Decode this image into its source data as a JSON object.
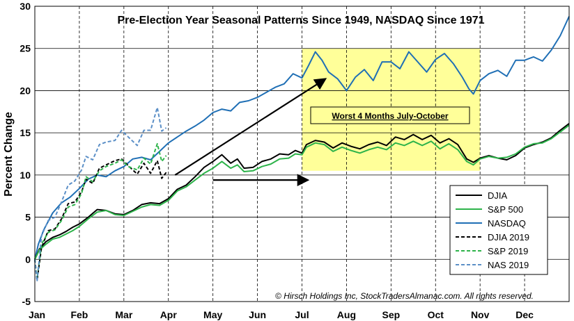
{
  "chart_data": {
    "type": "line",
    "title": "Pre-Election Year Seasonal Patterns Since 1949, NASDAQ Since 1971",
    "ylabel": "Percent Change",
    "xlabel": "",
    "ylim": [
      -5,
      30
    ],
    "yticks": [
      -5,
      0,
      5,
      10,
      15,
      20,
      25,
      30
    ],
    "months": [
      "Jan",
      "Feb",
      "Mar",
      "Apr",
      "May",
      "Jun",
      "Jul",
      "Aug",
      "Sep",
      "Oct",
      "Nov",
      "Dec"
    ],
    "grid": "vertical dashed month lines",
    "legend_position": "lower-right",
    "colors": {
      "djia": "#000000",
      "sp500": "#2db34a",
      "nasdaq": "#1f6fb5",
      "nas2019": "#5b8fc7",
      "highlight": "#ffff99"
    },
    "highlight": {
      "label": "Worst 4 Months July-October",
      "x_range": [
        6.0,
        10.0
      ],
      "y_range": [
        10.5,
        25
      ]
    },
    "arrows": [
      {
        "from": [
          3.15,
          10.0
        ],
        "to": [
          6.5,
          21.3
        ]
      },
      {
        "from": [
          4.0,
          9.4
        ],
        "to": [
          6.1,
          9.4
        ]
      }
    ],
    "copyright": "© Hirsch Holdings Inc, StockTradersAlmanac.com. All rights reserved.",
    "series": [
      {
        "name": "DJIA",
        "style": "solid",
        "color": "#000000",
        "points": [
          [
            0,
            0
          ],
          [
            0.1,
            1.2
          ],
          [
            0.25,
            2.1
          ],
          [
            0.4,
            2.6
          ],
          [
            0.55,
            2.9
          ],
          [
            0.7,
            3.3
          ],
          [
            0.85,
            3.8
          ],
          [
            1.0,
            4.2
          ],
          [
            1.2,
            5.0
          ],
          [
            1.4,
            5.9
          ],
          [
            1.6,
            5.8
          ],
          [
            1.8,
            5.4
          ],
          [
            2.0,
            5.3
          ],
          [
            2.2,
            5.8
          ],
          [
            2.4,
            6.5
          ],
          [
            2.6,
            6.7
          ],
          [
            2.8,
            6.6
          ],
          [
            3.0,
            7.2
          ],
          [
            3.2,
            8.3
          ],
          [
            3.4,
            8.8
          ],
          [
            3.6,
            9.8
          ],
          [
            3.8,
            10.9
          ],
          [
            4.0,
            11.6
          ],
          [
            4.2,
            12.4
          ],
          [
            4.4,
            11.4
          ],
          [
            4.55,
            11.9
          ],
          [
            4.7,
            10.8
          ],
          [
            4.9,
            10.9
          ],
          [
            5.1,
            11.6
          ],
          [
            5.3,
            11.9
          ],
          [
            5.5,
            12.5
          ],
          [
            5.7,
            12.4
          ],
          [
            5.85,
            12.9
          ],
          [
            6.0,
            12.6
          ],
          [
            6.1,
            13.6
          ],
          [
            6.3,
            14.1
          ],
          [
            6.5,
            13.9
          ],
          [
            6.7,
            13.2
          ],
          [
            6.9,
            13.8
          ],
          [
            7.1,
            13.4
          ],
          [
            7.3,
            13.1
          ],
          [
            7.5,
            13.6
          ],
          [
            7.7,
            13.9
          ],
          [
            7.9,
            13.5
          ],
          [
            8.1,
            14.5
          ],
          [
            8.3,
            14.2
          ],
          [
            8.5,
            14.8
          ],
          [
            8.7,
            14.2
          ],
          [
            8.9,
            14.7
          ],
          [
            9.1,
            13.8
          ],
          [
            9.3,
            14.3
          ],
          [
            9.5,
            13.6
          ],
          [
            9.7,
            11.9
          ],
          [
            9.85,
            11.5
          ],
          [
            10.0,
            12.0
          ],
          [
            10.2,
            12.3
          ],
          [
            10.4,
            12.0
          ],
          [
            10.6,
            11.8
          ],
          [
            10.8,
            12.3
          ],
          [
            11.0,
            13.2
          ],
          [
            11.2,
            13.6
          ],
          [
            11.4,
            13.9
          ],
          [
            11.6,
            14.4
          ],
          [
            11.8,
            15.3
          ],
          [
            12.0,
            16.1
          ]
        ]
      },
      {
        "name": "S&P 500",
        "style": "solid",
        "color": "#2db34a",
        "points": [
          [
            0,
            0
          ],
          [
            0.1,
            1.1
          ],
          [
            0.25,
            1.8
          ],
          [
            0.4,
            2.4
          ],
          [
            0.55,
            2.6
          ],
          [
            0.7,
            3.0
          ],
          [
            0.85,
            3.4
          ],
          [
            1.0,
            3.9
          ],
          [
            1.2,
            4.8
          ],
          [
            1.4,
            5.6
          ],
          [
            1.6,
            5.8
          ],
          [
            1.8,
            5.3
          ],
          [
            2.0,
            5.2
          ],
          [
            2.2,
            5.7
          ],
          [
            2.4,
            6.2
          ],
          [
            2.6,
            6.5
          ],
          [
            2.8,
            6.4
          ],
          [
            3.0,
            7.0
          ],
          [
            3.2,
            8.1
          ],
          [
            3.4,
            8.6
          ],
          [
            3.6,
            9.4
          ],
          [
            3.8,
            10.2
          ],
          [
            4.0,
            10.8
          ],
          [
            4.2,
            11.6
          ],
          [
            4.4,
            10.8
          ],
          [
            4.55,
            11.2
          ],
          [
            4.7,
            10.4
          ],
          [
            4.9,
            10.5
          ],
          [
            5.1,
            11.0
          ],
          [
            5.3,
            11.3
          ],
          [
            5.5,
            11.9
          ],
          [
            5.7,
            12.0
          ],
          [
            5.85,
            12.5
          ],
          [
            6.0,
            12.4
          ],
          [
            6.1,
            13.3
          ],
          [
            6.3,
            13.8
          ],
          [
            6.5,
            13.6
          ],
          [
            6.7,
            12.8
          ],
          [
            6.9,
            13.3
          ],
          [
            7.1,
            12.9
          ],
          [
            7.3,
            12.6
          ],
          [
            7.5,
            13.0
          ],
          [
            7.7,
            13.3
          ],
          [
            7.9,
            13.0
          ],
          [
            8.1,
            13.8
          ],
          [
            8.3,
            13.5
          ],
          [
            8.5,
            14.0
          ],
          [
            8.7,
            13.5
          ],
          [
            8.9,
            14.0
          ],
          [
            9.1,
            13.1
          ],
          [
            9.3,
            13.7
          ],
          [
            9.5,
            13.0
          ],
          [
            9.7,
            11.6
          ],
          [
            9.85,
            11.2
          ],
          [
            10.0,
            11.9
          ],
          [
            10.2,
            12.2
          ],
          [
            10.4,
            12.0
          ],
          [
            10.6,
            12.1
          ],
          [
            10.8,
            12.5
          ],
          [
            11.0,
            13.3
          ],
          [
            11.2,
            13.7
          ],
          [
            11.4,
            13.8
          ],
          [
            11.6,
            14.3
          ],
          [
            11.8,
            15.1
          ],
          [
            12.0,
            15.9
          ]
        ]
      },
      {
        "name": "NASDAQ",
        "style": "solid",
        "color": "#1f6fb5",
        "points": [
          [
            0,
            0
          ],
          [
            0.08,
            1.8
          ],
          [
            0.2,
            3.5
          ],
          [
            0.4,
            5.5
          ],
          [
            0.6,
            6.7
          ],
          [
            0.8,
            7.4
          ],
          [
            1.0,
            8.4
          ],
          [
            1.2,
            9.5
          ],
          [
            1.4,
            10.0
          ],
          [
            1.6,
            9.8
          ],
          [
            1.8,
            10.5
          ],
          [
            2.0,
            11.0
          ],
          [
            2.2,
            11.9
          ],
          [
            2.4,
            12.1
          ],
          [
            2.6,
            11.8
          ],
          [
            2.8,
            12.8
          ],
          [
            3.0,
            13.8
          ],
          [
            3.2,
            14.5
          ],
          [
            3.4,
            15.2
          ],
          [
            3.6,
            15.8
          ],
          [
            3.8,
            16.5
          ],
          [
            4.0,
            17.4
          ],
          [
            4.2,
            17.8
          ],
          [
            4.4,
            17.6
          ],
          [
            4.6,
            18.6
          ],
          [
            4.8,
            18.8
          ],
          [
            5.0,
            19.2
          ],
          [
            5.2,
            19.8
          ],
          [
            5.4,
            20.4
          ],
          [
            5.6,
            20.8
          ],
          [
            5.8,
            22.0
          ],
          [
            6.0,
            21.5
          ],
          [
            6.15,
            23.0
          ],
          [
            6.3,
            24.6
          ],
          [
            6.45,
            23.6
          ],
          [
            6.6,
            22.2
          ],
          [
            6.8,
            21.4
          ],
          [
            7.0,
            20.0
          ],
          [
            7.2,
            21.6
          ],
          [
            7.4,
            22.5
          ],
          [
            7.6,
            21.2
          ],
          [
            7.8,
            23.4
          ],
          [
            8.0,
            23.4
          ],
          [
            8.2,
            22.6
          ],
          [
            8.4,
            24.6
          ],
          [
            8.6,
            23.4
          ],
          [
            8.8,
            22.2
          ],
          [
            9.0,
            23.7
          ],
          [
            9.2,
            24.4
          ],
          [
            9.4,
            23.2
          ],
          [
            9.6,
            21.6
          ],
          [
            9.75,
            20.2
          ],
          [
            9.85,
            19.6
          ],
          [
            10.0,
            21.2
          ],
          [
            10.2,
            22.0
          ],
          [
            10.4,
            22.4
          ],
          [
            10.6,
            21.7
          ],
          [
            10.8,
            23.6
          ],
          [
            11.0,
            23.6
          ],
          [
            11.2,
            24.0
          ],
          [
            11.4,
            23.5
          ],
          [
            11.6,
            24.8
          ],
          [
            11.8,
            26.5
          ],
          [
            12.0,
            28.8
          ]
        ]
      },
      {
        "name": "DJIA 2019",
        "style": "dashed",
        "color": "#000000",
        "points": [
          [
            0,
            0
          ],
          [
            0.05,
            -2.5
          ],
          [
            0.15,
            1.4
          ],
          [
            0.3,
            3.4
          ],
          [
            0.45,
            3.6
          ],
          [
            0.6,
            4.8
          ],
          [
            0.75,
            6.6
          ],
          [
            0.9,
            6.8
          ],
          [
            1.05,
            8.0
          ],
          [
            1.15,
            9.5
          ],
          [
            1.3,
            9.0
          ],
          [
            1.45,
            10.8
          ],
          [
            1.6,
            11.2
          ],
          [
            1.8,
            11.7
          ],
          [
            1.95,
            11.9
          ],
          [
            2.1,
            11.1
          ],
          [
            2.3,
            10.1
          ],
          [
            2.45,
            11.4
          ],
          [
            2.6,
            10.2
          ],
          [
            2.75,
            11.7
          ],
          [
            2.85,
            9.6
          ],
          [
            2.95,
            10.3
          ]
        ]
      },
      {
        "name": "S&P 2019",
        "style": "dashed",
        "color": "#2db34a",
        "points": [
          [
            0,
            0
          ],
          [
            0.05,
            -2.3
          ],
          [
            0.15,
            1.8
          ],
          [
            0.3,
            3.2
          ],
          [
            0.45,
            3.5
          ],
          [
            0.6,
            4.6
          ],
          [
            0.75,
            6.2
          ],
          [
            0.9,
            6.5
          ],
          [
            1.05,
            7.8
          ],
          [
            1.15,
            9.8
          ],
          [
            1.3,
            9.2
          ],
          [
            1.45,
            10.5
          ],
          [
            1.6,
            11.0
          ],
          [
            1.8,
            11.4
          ],
          [
            1.95,
            11.8
          ],
          [
            2.1,
            11.0
          ],
          [
            2.3,
            10.6
          ],
          [
            2.45,
            12.0
          ],
          [
            2.6,
            11.3
          ],
          [
            2.75,
            13.7
          ],
          [
            2.85,
            11.6
          ],
          [
            2.95,
            12.3
          ]
        ]
      },
      {
        "name": "NAS 2019",
        "style": "dashed",
        "color": "#5b8fc7",
        "points": [
          [
            0,
            0
          ],
          [
            0.05,
            -2.6
          ],
          [
            0.15,
            2.8
          ],
          [
            0.3,
            4.6
          ],
          [
            0.45,
            5.0
          ],
          [
            0.6,
            6.8
          ],
          [
            0.75,
            8.8
          ],
          [
            0.9,
            9.3
          ],
          [
            1.05,
            10.6
          ],
          [
            1.15,
            12.2
          ],
          [
            1.3,
            11.8
          ],
          [
            1.45,
            13.6
          ],
          [
            1.6,
            13.9
          ],
          [
            1.8,
            14.1
          ],
          [
            1.95,
            15.3
          ],
          [
            2.1,
            14.5
          ],
          [
            2.3,
            13.5
          ],
          [
            2.45,
            15.3
          ],
          [
            2.6,
            15.3
          ],
          [
            2.75,
            18.0
          ],
          [
            2.85,
            15.2
          ],
          [
            2.95,
            15.6
          ]
        ]
      }
    ]
  }
}
